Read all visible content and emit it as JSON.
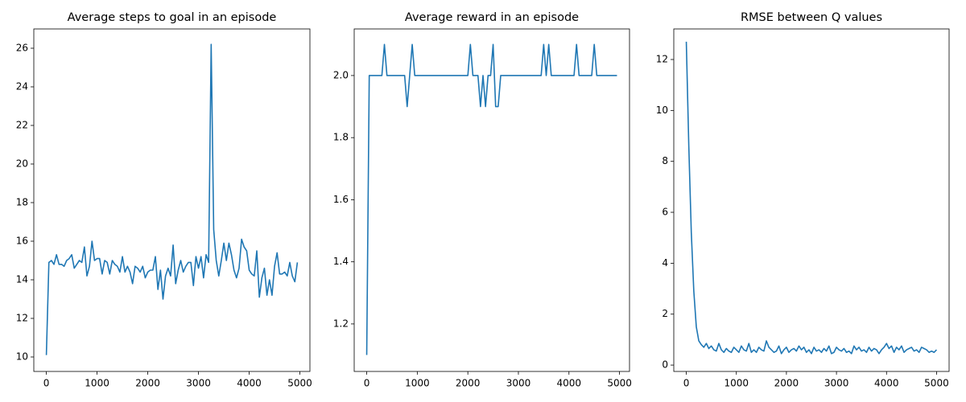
{
  "chart_data": [
    {
      "type": "line",
      "title": "Average steps to goal in an episode",
      "color": "#1f77b4",
      "x": [
        0,
        50,
        100,
        150,
        200,
        250,
        300,
        350,
        400,
        450,
        500,
        550,
        600,
        650,
        700,
        750,
        800,
        850,
        900,
        950,
        1000,
        1050,
        1100,
        1150,
        1200,
        1250,
        1300,
        1350,
        1400,
        1450,
        1500,
        1550,
        1600,
        1650,
        1700,
        1750,
        1800,
        1850,
        1900,
        1950,
        2000,
        2050,
        2100,
        2150,
        2200,
        2250,
        2300,
        2350,
        2400,
        2450,
        2500,
        2550,
        2600,
        2650,
        2700,
        2750,
        2800,
        2850,
        2900,
        2950,
        3000,
        3050,
        3100,
        3150,
        3200,
        3250,
        3300,
        3350,
        3400,
        3450,
        3500,
        3550,
        3600,
        3650,
        3700,
        3750,
        3800,
        3850,
        3900,
        3950,
        4000,
        4050,
        4100,
        4150,
        4200,
        4250,
        4300,
        4350,
        4400,
        4450,
        4500,
        4550,
        4600,
        4650,
        4700,
        4750,
        4800,
        4850,
        4900,
        4950
      ],
      "values": [
        10.1,
        14.9,
        15.0,
        14.8,
        15.3,
        14.8,
        14.8,
        14.7,
        15.0,
        15.1,
        15.3,
        14.6,
        14.8,
        15.0,
        14.9,
        15.7,
        14.2,
        14.7,
        16.0,
        15.0,
        15.1,
        15.1,
        14.3,
        15.0,
        14.9,
        14.3,
        15.0,
        14.8,
        14.7,
        14.4,
        15.2,
        14.4,
        14.7,
        14.4,
        13.8,
        14.7,
        14.6,
        14.4,
        14.7,
        14.1,
        14.4,
        14.5,
        14.5,
        15.2,
        13.5,
        14.5,
        13.0,
        14.2,
        14.6,
        14.2,
        15.8,
        13.8,
        14.5,
        15.0,
        14.4,
        14.7,
        14.9,
        14.9,
        13.7,
        15.2,
        14.6,
        15.2,
        14.1,
        15.3,
        14.9,
        26.2,
        16.6,
        15.0,
        14.2,
        15.0,
        15.9,
        15.0,
        15.9,
        15.3,
        14.5,
        14.1,
        14.6,
        16.1,
        15.7,
        15.5,
        14.5,
        14.3,
        14.2,
        15.5,
        13.1,
        14.1,
        14.6,
        13.2,
        14.0,
        13.2,
        14.7,
        15.4,
        14.3,
        14.3,
        14.4,
        14.2,
        14.9,
        14.2,
        13.9,
        14.9
      ],
      "xlim": [
        -247.5,
        5197.5
      ],
      "xticks": [
        0,
        1000,
        2000,
        3000,
        4000,
        5000
      ],
      "ylim": [
        9.25,
        27.0
      ],
      "yticks": [
        10,
        12,
        14,
        16,
        18,
        20,
        22,
        24,
        26
      ]
    },
    {
      "type": "line",
      "title": "Average reward in an episode",
      "color": "#1f77b4",
      "x": [
        0,
        50,
        100,
        150,
        200,
        250,
        300,
        350,
        400,
        450,
        500,
        550,
        600,
        650,
        700,
        750,
        800,
        850,
        900,
        950,
        1000,
        1050,
        1100,
        1150,
        1200,
        1250,
        1300,
        1350,
        1400,
        1450,
        1500,
        1550,
        1600,
        1650,
        1700,
        1750,
        1800,
        1850,
        1900,
        1950,
        2000,
        2050,
        2100,
        2150,
        2200,
        2250,
        2300,
        2350,
        2400,
        2450,
        2500,
        2550,
        2600,
        2650,
        2700,
        2750,
        2800,
        2850,
        2900,
        2950,
        3000,
        3050,
        3100,
        3150,
        3200,
        3250,
        3300,
        3350,
        3400,
        3450,
        3500,
        3550,
        3600,
        3650,
        3700,
        3750,
        3800,
        3850,
        3900,
        3950,
        4000,
        4050,
        4100,
        4150,
        4200,
        4250,
        4300,
        4350,
        4400,
        4450,
        4500,
        4550,
        4600,
        4650,
        4700,
        4750,
        4800,
        4850,
        4900,
        4950
      ],
      "values": [
        1.1,
        2.0,
        2.0,
        2.0,
        2.0,
        2.0,
        2.0,
        2.1,
        2.0,
        2.0,
        2.0,
        2.0,
        2.0,
        2.0,
        2.0,
        2.0,
        1.9,
        2.0,
        2.1,
        2.0,
        2.0,
        2.0,
        2.0,
        2.0,
        2.0,
        2.0,
        2.0,
        2.0,
        2.0,
        2.0,
        2.0,
        2.0,
        2.0,
        2.0,
        2.0,
        2.0,
        2.0,
        2.0,
        2.0,
        2.0,
        2.0,
        2.1,
        2.0,
        2.0,
        2.0,
        1.9,
        2.0,
        1.9,
        2.0,
        2.0,
        2.1,
        1.9,
        1.9,
        2.0,
        2.0,
        2.0,
        2.0,
        2.0,
        2.0,
        2.0,
        2.0,
        2.0,
        2.0,
        2.0,
        2.0,
        2.0,
        2.0,
        2.0,
        2.0,
        2.0,
        2.1,
        2.0,
        2.1,
        2.0,
        2.0,
        2.0,
        2.0,
        2.0,
        2.0,
        2.0,
        2.0,
        2.0,
        2.0,
        2.1,
        2.0,
        2.0,
        2.0,
        2.0,
        2.0,
        2.0,
        2.1,
        2.0,
        2.0,
        2.0,
        2.0,
        2.0,
        2.0,
        2.0,
        2.0,
        2.0
      ],
      "xlim": [
        -247.5,
        5197.5
      ],
      "xticks": [
        0,
        1000,
        2000,
        3000,
        4000,
        5000
      ],
      "ylim": [
        1.047,
        2.15
      ],
      "yticks": [
        1.2,
        1.4,
        1.6,
        1.8,
        {
          "value": 2,
          "label": "2.0"
        }
      ]
    },
    {
      "type": "line",
      "title": "RMSE between Q values",
      "color": "#1f77b4",
      "x": [
        0,
        50,
        100,
        150,
        200,
        250,
        300,
        350,
        400,
        450,
        500,
        550,
        600,
        650,
        700,
        750,
        800,
        850,
        900,
        950,
        1000,
        1050,
        1100,
        1150,
        1200,
        1250,
        1300,
        1350,
        1400,
        1450,
        1500,
        1550,
        1600,
        1650,
        1700,
        1750,
        1800,
        1850,
        1900,
        1950,
        2000,
        2050,
        2100,
        2150,
        2200,
        2250,
        2300,
        2350,
        2400,
        2450,
        2500,
        2550,
        2600,
        2650,
        2700,
        2750,
        2800,
        2850,
        2900,
        2950,
        3000,
        3050,
        3100,
        3150,
        3200,
        3250,
        3300,
        3350,
        3400,
        3450,
        3500,
        3550,
        3600,
        3650,
        3700,
        3750,
        3800,
        3850,
        3900,
        3950,
        4000,
        4050,
        4100,
        4150,
        4200,
        4250,
        4300,
        4350,
        4400,
        4450,
        4500,
        4550,
        4600,
        4650,
        4700,
        4750,
        4800,
        4850,
        4900,
        4950,
        5000
      ],
      "values": [
        12.7,
        8.6,
        5.2,
        2.9,
        1.5,
        0.95,
        0.8,
        0.7,
        0.85,
        0.65,
        0.75,
        0.6,
        0.55,
        0.85,
        0.6,
        0.5,
        0.65,
        0.55,
        0.5,
        0.7,
        0.6,
        0.5,
        0.75,
        0.6,
        0.55,
        0.85,
        0.5,
        0.6,
        0.5,
        0.7,
        0.6,
        0.55,
        0.95,
        0.7,
        0.6,
        0.5,
        0.55,
        0.75,
        0.45,
        0.6,
        0.7,
        0.5,
        0.6,
        0.65,
        0.55,
        0.75,
        0.6,
        0.7,
        0.5,
        0.6,
        0.45,
        0.7,
        0.55,
        0.6,
        0.5,
        0.65,
        0.55,
        0.75,
        0.45,
        0.5,
        0.7,
        0.6,
        0.55,
        0.65,
        0.5,
        0.55,
        0.45,
        0.75,
        0.6,
        0.7,
        0.55,
        0.6,
        0.5,
        0.7,
        0.55,
        0.65,
        0.6,
        0.45,
        0.6,
        0.7,
        0.85,
        0.65,
        0.75,
        0.5,
        0.7,
        0.6,
        0.75,
        0.5,
        0.6,
        0.65,
        0.7,
        0.55,
        0.6,
        0.5,
        0.7,
        0.65,
        0.6,
        0.5,
        0.55,
        0.5,
        0.6
      ],
      "xlim": [
        -250,
        5250
      ],
      "xticks": [
        0,
        1000,
        2000,
        3000,
        4000,
        5000
      ],
      "ylim": [
        -0.25,
        13.2
      ],
      "yticks": [
        0,
        2,
        4,
        6,
        8,
        10,
        12
      ]
    }
  ]
}
